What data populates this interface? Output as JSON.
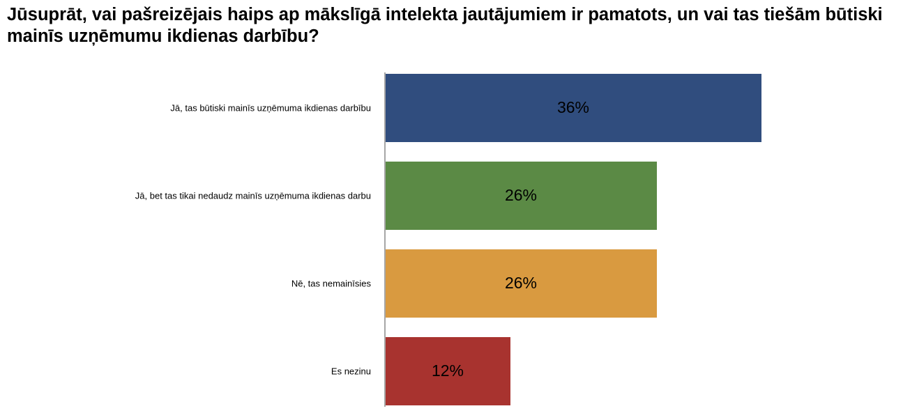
{
  "chart_data": {
    "type": "bar",
    "orientation": "horizontal",
    "title": "Jūsuprāt, vai pašreizējais haips ap mākslīgā intelekta jautājumiem ir pamatots, un vai tas tiešām būtiski mainīs uzņēmumu ikdienas darbību?",
    "categories": [
      "Jā, tas būtiski mainīs uzņēmuma ikdienas darbību",
      "Jā, bet tas tikai nedaudz mainīs uzņēmuma ikdienas darbu",
      "Nē, tas nemainīsies",
      "Es nezinu"
    ],
    "values": [
      36,
      26,
      26,
      12
    ],
    "value_labels": [
      "36%",
      "26%",
      "26%",
      "12%"
    ],
    "colors": [
      "#304d7e",
      "#5b8a45",
      "#d99a40",
      "#a8332f"
    ]
  }
}
